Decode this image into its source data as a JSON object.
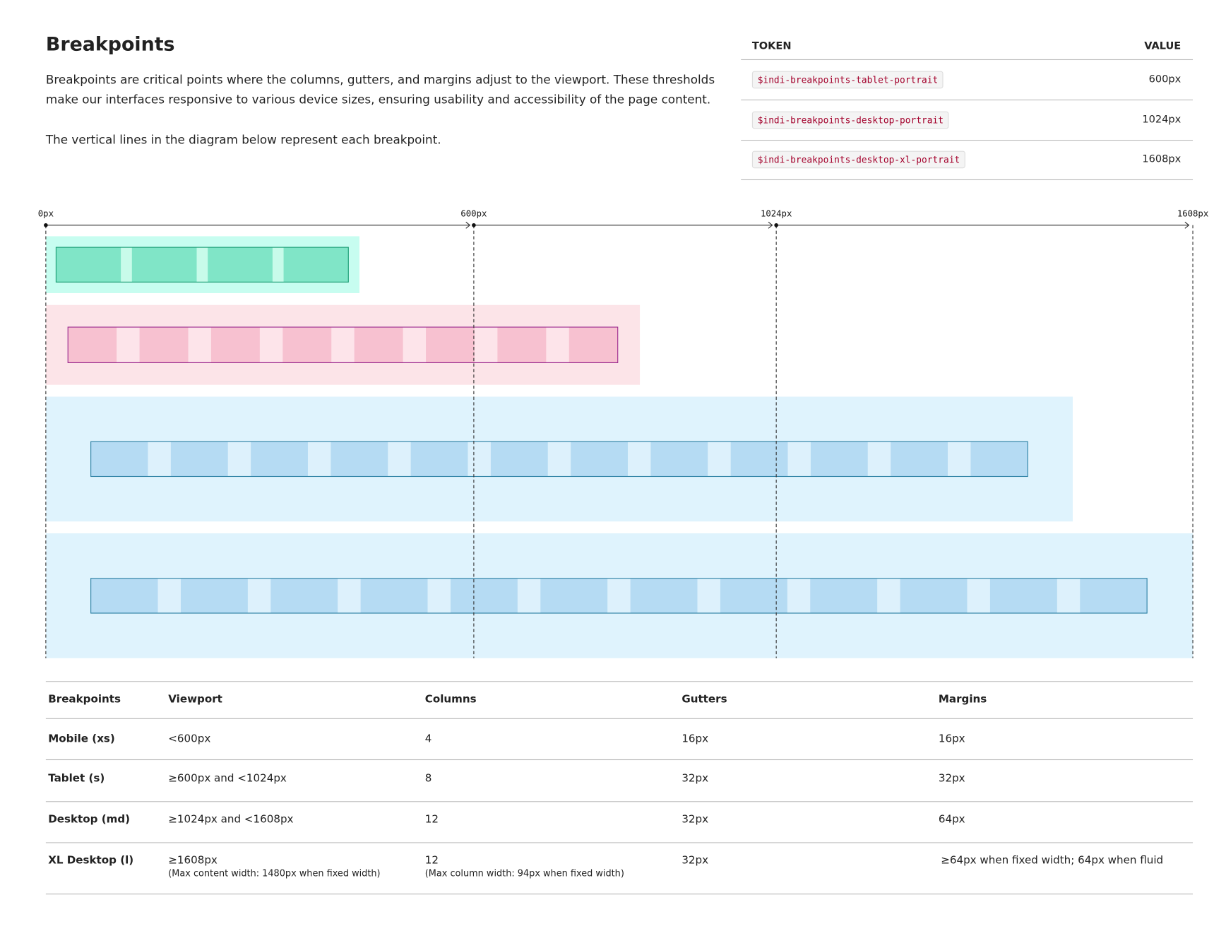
{
  "header": {
    "title": "Breakpoints",
    "paragraphs": [
      "Breakpoints are critical points where the columns, gutters, and margins adjust to the viewport. These thresholds make our interfaces responsive to various device sizes, ensuring usability and accessibility of the page content.",
      "The vertical lines in the diagram below represent each breakpoint."
    ]
  },
  "token_table": {
    "headers": [
      "TOKEN",
      "VALUE"
    ],
    "rows": [
      [
        "$indi-breakpoints-tablet-portrait",
        "600px"
      ],
      [
        "$indi-breakpoints-desktop-portrait",
        "1024px"
      ],
      [
        "$indi-breakpoints-desktop-xl-portrait",
        "1608px"
      ]
    ]
  },
  "diagram": {
    "axis_labels": [
      "0px",
      "600px",
      "1024px",
      "1608px"
    ]
  },
  "table": {
    "headers": [
      "Breakpoints",
      "Viewport",
      "Columns",
      "Gutters",
      "Margins"
    ],
    "rows": [
      [
        "Mobile (xs)",
        "<600px",
        "4",
        "16px",
        "16px"
      ],
      [
        "Tablet (s)",
        "≥600px and <1024px",
        "8",
        "32px",
        "32px"
      ],
      [
        "Desktop (md)",
        "≥1024px and <1608px",
        "12",
        "32px",
        "64px"
      ],
      [
        "XL Desktop (l)",
        {
          "text": "≥1608px",
          "note": "(Max content width: 1480px when fixed width)"
        },
        {
          "text": "12",
          "note": "(Max column width: 94px when fixed width)"
        },
        "32px",
        "≥64px when fixed width; 64px when fluid"
      ]
    ]
  }
}
